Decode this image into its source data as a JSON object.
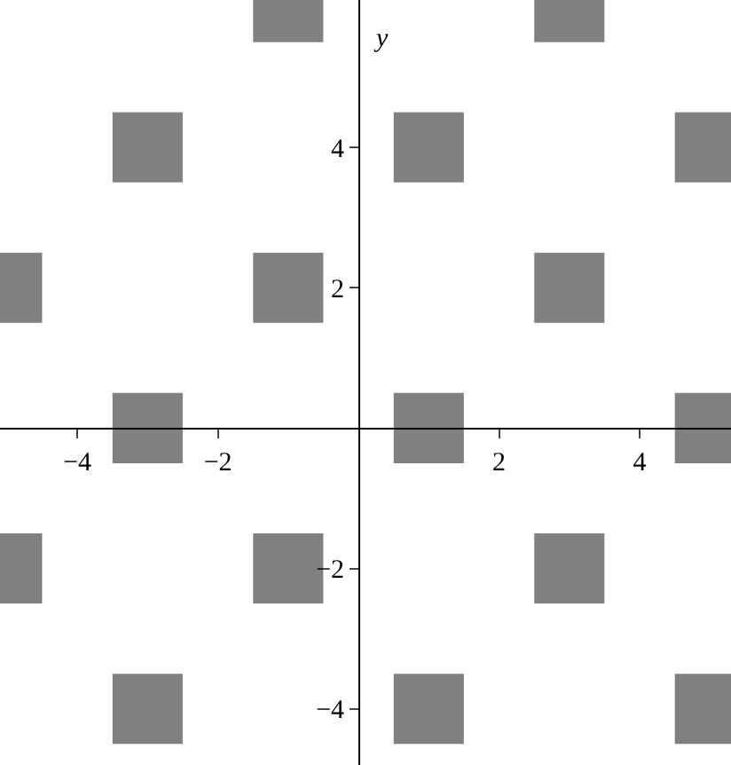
{
  "chart_data": {
    "type": "scatter",
    "ylabel": "y",
    "marker": "square",
    "grid": false,
    "x": [
      -1,
      3,
      -3,
      1,
      5,
      -5,
      -1,
      3,
      -3,
      1,
      5,
      -5,
      -1,
      3,
      -3,
      1,
      5
    ],
    "series": [
      {
        "color": "#808080",
        "values": [
          6,
          6,
          4,
          4,
          4,
          2,
          2,
          2,
          0,
          0,
          0,
          -2,
          -2,
          -2,
          -4,
          -4,
          -4
        ]
      }
    ],
    "xlim": [
      -5.1,
      5.3
    ],
    "ylim": [
      -4.8,
      6.1
    ],
    "xticks": [
      -4,
      -2,
      2,
      4
    ],
    "yticks": [
      -4,
      -2,
      2,
      4
    ]
  }
}
